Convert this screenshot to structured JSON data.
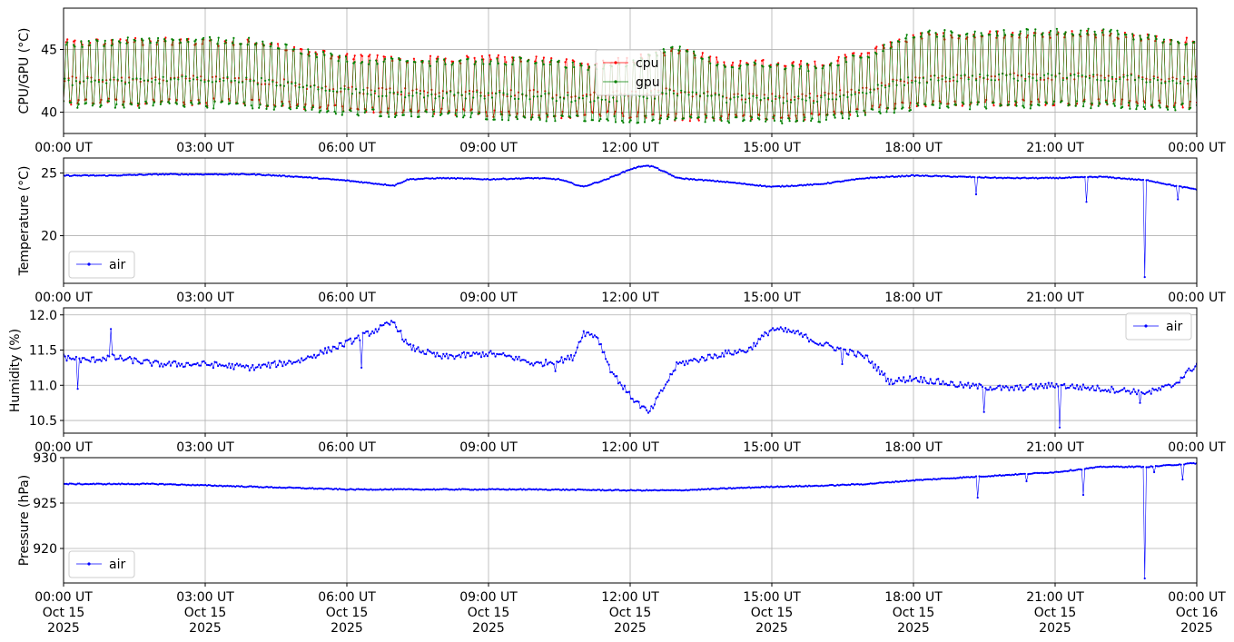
{
  "colors": {
    "cpu": "#ff0000",
    "gpu": "#008000",
    "air": "#0000ff",
    "grid": "#b0b0b0"
  },
  "chart_data": [
    {
      "type": "line",
      "ylabel": "CPU/GPU (°C)",
      "ylim": [
        38.3,
        48.3
      ],
      "yticks": [
        40,
        45
      ],
      "grid": true,
      "legend": "upper-center",
      "x_tick_labels": [
        "00:00 UT",
        "03:00 UT",
        "06:00 UT",
        "09:00 UT",
        "12:00 UT",
        "15:00 UT",
        "18:00 UT",
        "21:00 UT",
        "00:00 UT"
      ],
      "x_hours": [
        0,
        3,
        6,
        9,
        12,
        15,
        18,
        21,
        24
      ],
      "series": [
        {
          "name": "cpu",
          "color": "#ff0000",
          "x_hours": [
            0,
            2,
            4,
            6,
            8,
            10,
            11,
            12,
            13,
            14,
            16,
            17,
            18,
            20,
            22,
            24
          ],
          "low": [
            40.8,
            40.8,
            40.8,
            40.2,
            40.0,
            39.8,
            39.8,
            39.8,
            39.6,
            39.6,
            39.6,
            40.2,
            40.6,
            40.8,
            40.8,
            40.6
          ],
          "high": [
            46.0,
            46.2,
            46.0,
            44.8,
            44.6,
            44.8,
            44.2,
            44.6,
            45.6,
            44.4,
            44.2,
            45.2,
            46.6,
            46.8,
            46.8,
            46.2
          ]
        },
        {
          "name": "gpu",
          "color": "#008000",
          "x_hours": [
            0,
            2,
            4,
            6,
            8,
            10,
            11,
            12,
            13,
            14,
            16,
            17,
            18,
            20,
            22,
            24
          ],
          "low": [
            40.6,
            40.6,
            40.6,
            40.0,
            39.8,
            39.6,
            39.4,
            39.4,
            39.4,
            39.4,
            39.4,
            40.0,
            40.4,
            40.6,
            40.6,
            40.4
          ],
          "high": [
            45.8,
            46.4,
            46.2,
            44.6,
            44.4,
            44.6,
            44.0,
            44.4,
            45.8,
            44.2,
            44.0,
            45.0,
            46.8,
            47.0,
            47.0,
            46.0
          ]
        }
      ]
    },
    {
      "type": "line",
      "ylabel": "Temperature (°C)",
      "ylim": [
        16.2,
        26.2
      ],
      "yticks": [
        20,
        25
      ],
      "grid": true,
      "legend": "lower-left",
      "x_tick_labels": [
        "00:00 UT",
        "03:00 UT",
        "06:00 UT",
        "09:00 UT",
        "12:00 UT",
        "15:00 UT",
        "18:00 UT",
        "21:00 UT",
        "00:00 UT"
      ],
      "x_hours": [
        0,
        3,
        6,
        9,
        12,
        15,
        18,
        21,
        24
      ],
      "series": [
        {
          "name": "air",
          "color": "#0000ff",
          "x_hours": [
            0,
            1,
            2,
            3,
            4,
            5,
            6,
            6.5,
            7,
            7.3,
            8,
            9,
            10,
            10.5,
            11,
            11.5,
            12,
            12.3,
            12.5,
            13,
            14,
            15,
            16,
            17,
            18,
            19,
            20,
            21,
            22,
            23,
            23.5,
            24
          ],
          "values": [
            24.8,
            24.8,
            24.9,
            24.9,
            24.9,
            24.7,
            24.4,
            24.2,
            24.0,
            24.5,
            24.6,
            24.5,
            24.6,
            24.5,
            23.9,
            24.5,
            25.3,
            25.6,
            25.5,
            24.6,
            24.3,
            23.9,
            24.1,
            24.6,
            24.8,
            24.7,
            24.6,
            24.6,
            24.7,
            24.4,
            24.0,
            23.7
          ],
          "spikes": [
            {
              "x_hours": 19.33,
              "value": 23.3
            },
            {
              "x_hours": 21.67,
              "value": 22.7
            },
            {
              "x_hours": 22.9,
              "value": 16.7
            },
            {
              "x_hours": 23.6,
              "value": 22.9
            }
          ]
        }
      ]
    },
    {
      "type": "line",
      "ylabel": "Humidity (%)",
      "ylim": [
        10.32,
        12.1
      ],
      "yticks": [
        10.5,
        11.0,
        11.5,
        12.0
      ],
      "ytick_labels": [
        "10.5",
        "11.0",
        "11.5",
        "12.0"
      ],
      "grid": true,
      "legend": "upper-right",
      "x_tick_labels": [
        "00:00 UT",
        "03:00 UT",
        "06:00 UT",
        "09:00 UT",
        "12:00 UT",
        "15:00 UT",
        "18:00 UT",
        "21:00 UT",
        "00:00 UT"
      ],
      "x_hours": [
        0,
        3,
        6,
        9,
        12,
        15,
        18,
        21,
        24
      ],
      "series": [
        {
          "name": "air",
          "color": "#0000ff",
          "x_hours": [
            0,
            0.5,
            1,
            2,
            3,
            4,
            5,
            6,
            6.5,
            7,
            7.3,
            8,
            9,
            9.5,
            10,
            10.5,
            10.8,
            11,
            11.3,
            11.6,
            12,
            12.4,
            13,
            14,
            14.5,
            15,
            15.5,
            16,
            17,
            17.5,
            18,
            19,
            20,
            21,
            22,
            23,
            23.5,
            24
          ],
          "values": [
            11.4,
            11.35,
            11.4,
            11.3,
            11.3,
            11.25,
            11.35,
            11.6,
            11.75,
            11.9,
            11.55,
            11.4,
            11.45,
            11.4,
            11.3,
            11.35,
            11.4,
            11.75,
            11.7,
            11.2,
            10.85,
            10.6,
            11.3,
            11.45,
            11.5,
            11.8,
            11.75,
            11.6,
            11.4,
            11.05,
            11.1,
            11.0,
            10.95,
            11.0,
            10.95,
            10.9,
            11.0,
            11.3
          ],
          "spikes": [
            {
              "x_hours": 0.3,
              "value": 10.95
            },
            {
              "x_hours": 1.0,
              "value": 11.8
            },
            {
              "x_hours": 6.3,
              "value": 11.25
            },
            {
              "x_hours": 10.4,
              "value": 11.2
            },
            {
              "x_hours": 16.5,
              "value": 11.3
            },
            {
              "x_hours": 19.5,
              "value": 10.62
            },
            {
              "x_hours": 21.1,
              "value": 10.4
            },
            {
              "x_hours": 22.8,
              "value": 10.75
            }
          ]
        }
      ]
    },
    {
      "type": "line",
      "ylabel": "Pressure (hPa)",
      "ylim": [
        916.2,
        930.0
      ],
      "yticks": [
        920,
        925,
        930
      ],
      "grid": true,
      "legend": "lower-left",
      "x_tick_labels": [
        "00:00 UT\nOct 15\n2025",
        "03:00 UT\nOct 15\n2025",
        "06:00 UT\nOct 15\n2025",
        "09:00 UT\nOct 15\n2025",
        "12:00 UT\nOct 15\n2025",
        "15:00 UT\nOct 15\n2025",
        "18:00 UT\nOct 15\n2025",
        "21:00 UT\nOct 15\n2025",
        "00:00 UT\nOct 16\n2025"
      ],
      "x_hours": [
        0,
        3,
        6,
        9,
        12,
        15,
        18,
        21,
        24
      ],
      "series": [
        {
          "name": "air",
          "color": "#0000ff",
          "x_hours": [
            0,
            2,
            4,
            6,
            8,
            10,
            12,
            13,
            14,
            15,
            16,
            17,
            18,
            19,
            20,
            21,
            22,
            23,
            24
          ],
          "values": [
            927.1,
            927.1,
            926.8,
            926.5,
            926.5,
            926.5,
            926.4,
            926.4,
            926.6,
            926.8,
            926.9,
            927.1,
            927.5,
            927.8,
            928.1,
            928.4,
            929.0,
            929.0,
            929.4
          ],
          "spikes": [
            {
              "x_hours": 19.35,
              "value": 925.6
            },
            {
              "x_hours": 20.4,
              "value": 927.4
            },
            {
              "x_hours": 21.6,
              "value": 925.9
            },
            {
              "x_hours": 22.9,
              "value": 916.7
            },
            {
              "x_hours": 23.1,
              "value": 928.4
            },
            {
              "x_hours": 23.7,
              "value": 927.6
            }
          ]
        }
      ]
    }
  ]
}
